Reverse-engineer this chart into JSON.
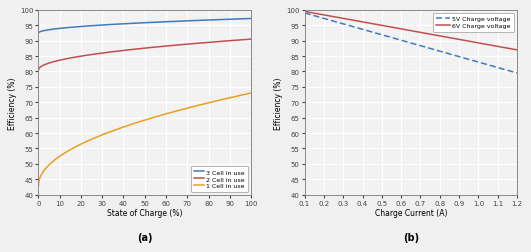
{
  "subplot_a": {
    "title": "(a)",
    "xlabel": "State of Charge (%)",
    "ylabel": "Efficiency (%)",
    "xlim": [
      0,
      100
    ],
    "ylim": [
      40,
      100
    ],
    "xticks": [
      0,
      10,
      20,
      30,
      40,
      50,
      60,
      70,
      80,
      90,
      100
    ],
    "yticks": [
      40,
      45,
      50,
      55,
      60,
      65,
      70,
      75,
      80,
      85,
      90,
      95,
      100
    ],
    "curves": [
      {
        "label": "3 Cell in use",
        "color": "#3E7BBF",
        "y_start": 92.5,
        "y_end": 97.2,
        "shape": "sqrt"
      },
      {
        "label": "2 Cell in use",
        "color": "#C0504D",
        "y_start": 80.5,
        "y_end": 90.5,
        "shape": "sqrt"
      },
      {
        "label": "1 Cell in use",
        "color": "#E8A020",
        "y_start": 43.0,
        "y_end": 73.0,
        "shape": "sqrt"
      }
    ]
  },
  "subplot_b": {
    "title": "(b)",
    "xlabel": "Charge Current (A)",
    "ylabel": "Efficiency (%)",
    "xlim": [
      0.1,
      1.2
    ],
    "ylim": [
      40,
      100
    ],
    "xticks": [
      0.1,
      0.2,
      0.3,
      0.4,
      0.5,
      0.6,
      0.7,
      0.8,
      0.9,
      1.0,
      1.1,
      1.2
    ],
    "yticks": [
      40,
      45,
      50,
      55,
      60,
      65,
      70,
      75,
      80,
      85,
      90,
      95,
      100
    ],
    "curves": [
      {
        "label": "5V Charge voltage",
        "color": "#3E7BBF",
        "linestyle": "dashed",
        "y_start": 99.0,
        "y_end": 79.5
      },
      {
        "label": "6V Charge voltage",
        "color": "#C0504D",
        "linestyle": "solid",
        "y_start": 99.5,
        "y_end": 87.0
      }
    ]
  },
  "ax_bg_color": "#f2f2f2",
  "grid_color": "#ffffff",
  "fig_bg_color": "#f0f0f0",
  "spine_color": "#888888",
  "tick_color": "#444444"
}
